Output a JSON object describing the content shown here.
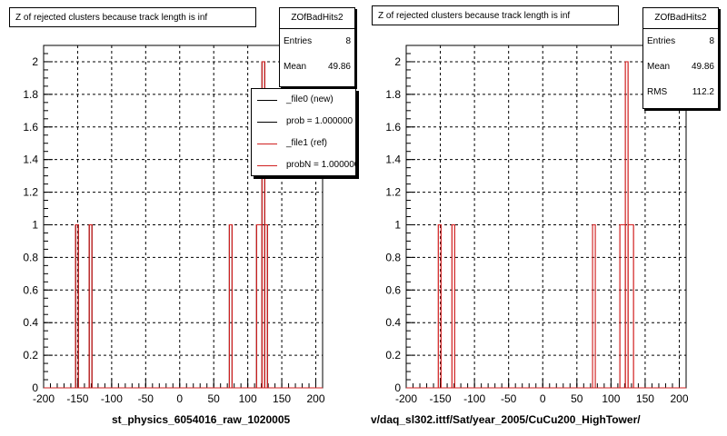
{
  "chart_data": [
    {
      "type": "bar",
      "title": "Z of rejected clusters  because track length is inf",
      "xlabel": "st_physics_6054016_raw_1020005",
      "ylabel": "",
      "xlim": [
        -200,
        210
      ],
      "ylim": [
        0,
        2.1
      ],
      "xticks": [
        "-200",
        "-150",
        "-100",
        "-50",
        "0",
        "50",
        "100",
        "150",
        "200"
      ],
      "yticks": [
        "0",
        "0.2",
        "0.4",
        "0.6",
        "0.8",
        "1",
        "1.2",
        "1.4",
        "1.6",
        "1.8",
        "2"
      ],
      "grid": true,
      "series": [
        {
          "name": "_file0 (new)",
          "color": "#000000",
          "bins": [
            {
              "x0": -153,
              "x1": -149,
              "y": 1
            },
            {
              "x0": -133,
              "x1": -129,
              "y": 1
            },
            {
              "x0": 73,
              "x1": 77,
              "y": 1
            },
            {
              "x0": 113,
              "x1": 121,
              "y": 1
            },
            {
              "x0": 121,
              "x1": 125,
              "y": 2
            },
            {
              "x0": 125,
              "x1": 129,
              "y": 1
            }
          ]
        },
        {
          "name": "_file1 (ref)",
          "color": "#d02020",
          "bins": [
            {
              "x0": -153,
              "x1": -149,
              "y": 1
            },
            {
              "x0": -133,
              "x1": -129,
              "y": 1
            },
            {
              "x0": 73,
              "x1": 77,
              "y": 1
            },
            {
              "x0": 113,
              "x1": 121,
              "y": 1
            },
            {
              "x0": 121,
              "x1": 125,
              "y": 2
            },
            {
              "x0": 125,
              "x1": 129,
              "y": 1
            }
          ]
        }
      ],
      "stats": {
        "name": "ZOfBadHits2",
        "entries_label": "Entries",
        "entries": "8",
        "mean_label": "Mean",
        "mean": "49.86"
      },
      "legend": {
        "placement": "top-right",
        "entries": [
          {
            "label": "_file0 (new)",
            "color": "#000000"
          },
          {
            "label": "prob = 1.000000",
            "color": "#000000"
          },
          {
            "label": "_file1 (ref)",
            "color": "#d02020"
          },
          {
            "label": "probN = 1.000000",
            "color": "#d02020"
          }
        ]
      }
    },
    {
      "type": "bar",
      "title": "Z of rejected clusters  because track length is inf",
      "xlabel": "v/daq_sl302.ittf/Sat/year_2005/CuCu200_HighTower/",
      "ylabel": "",
      "xlim": [
        -200,
        210
      ],
      "ylim": [
        0,
        2.1
      ],
      "xticks": [
        "-200",
        "-150",
        "-100",
        "-50",
        "0",
        "50",
        "100",
        "150",
        "200"
      ],
      "yticks": [
        "0",
        "0.2",
        "0.4",
        "0.6",
        "0.8",
        "1",
        "1.2",
        "1.4",
        "1.6",
        "1.8",
        "2"
      ],
      "grid": true,
      "series": [
        {
          "name": "",
          "color": "#d02020",
          "bins": [
            {
              "x0": -153,
              "x1": -149,
              "y": 1
            },
            {
              "x0": -133,
              "x1": -129,
              "y": 1
            },
            {
              "x0": 73,
              "x1": 77,
              "y": 1
            },
            {
              "x0": 113,
              "x1": 121,
              "y": 1
            },
            {
              "x0": 121,
              "x1": 125,
              "y": 2
            },
            {
              "x0": 125,
              "x1": 133,
              "y": 1
            }
          ]
        }
      ],
      "stats": {
        "name": "ZOfBadHits2",
        "entries_label": "Entries",
        "entries": "8",
        "mean_label": "Mean",
        "mean": "49.86",
        "rms_label": "RMS",
        "rms": "112.2"
      }
    }
  ]
}
